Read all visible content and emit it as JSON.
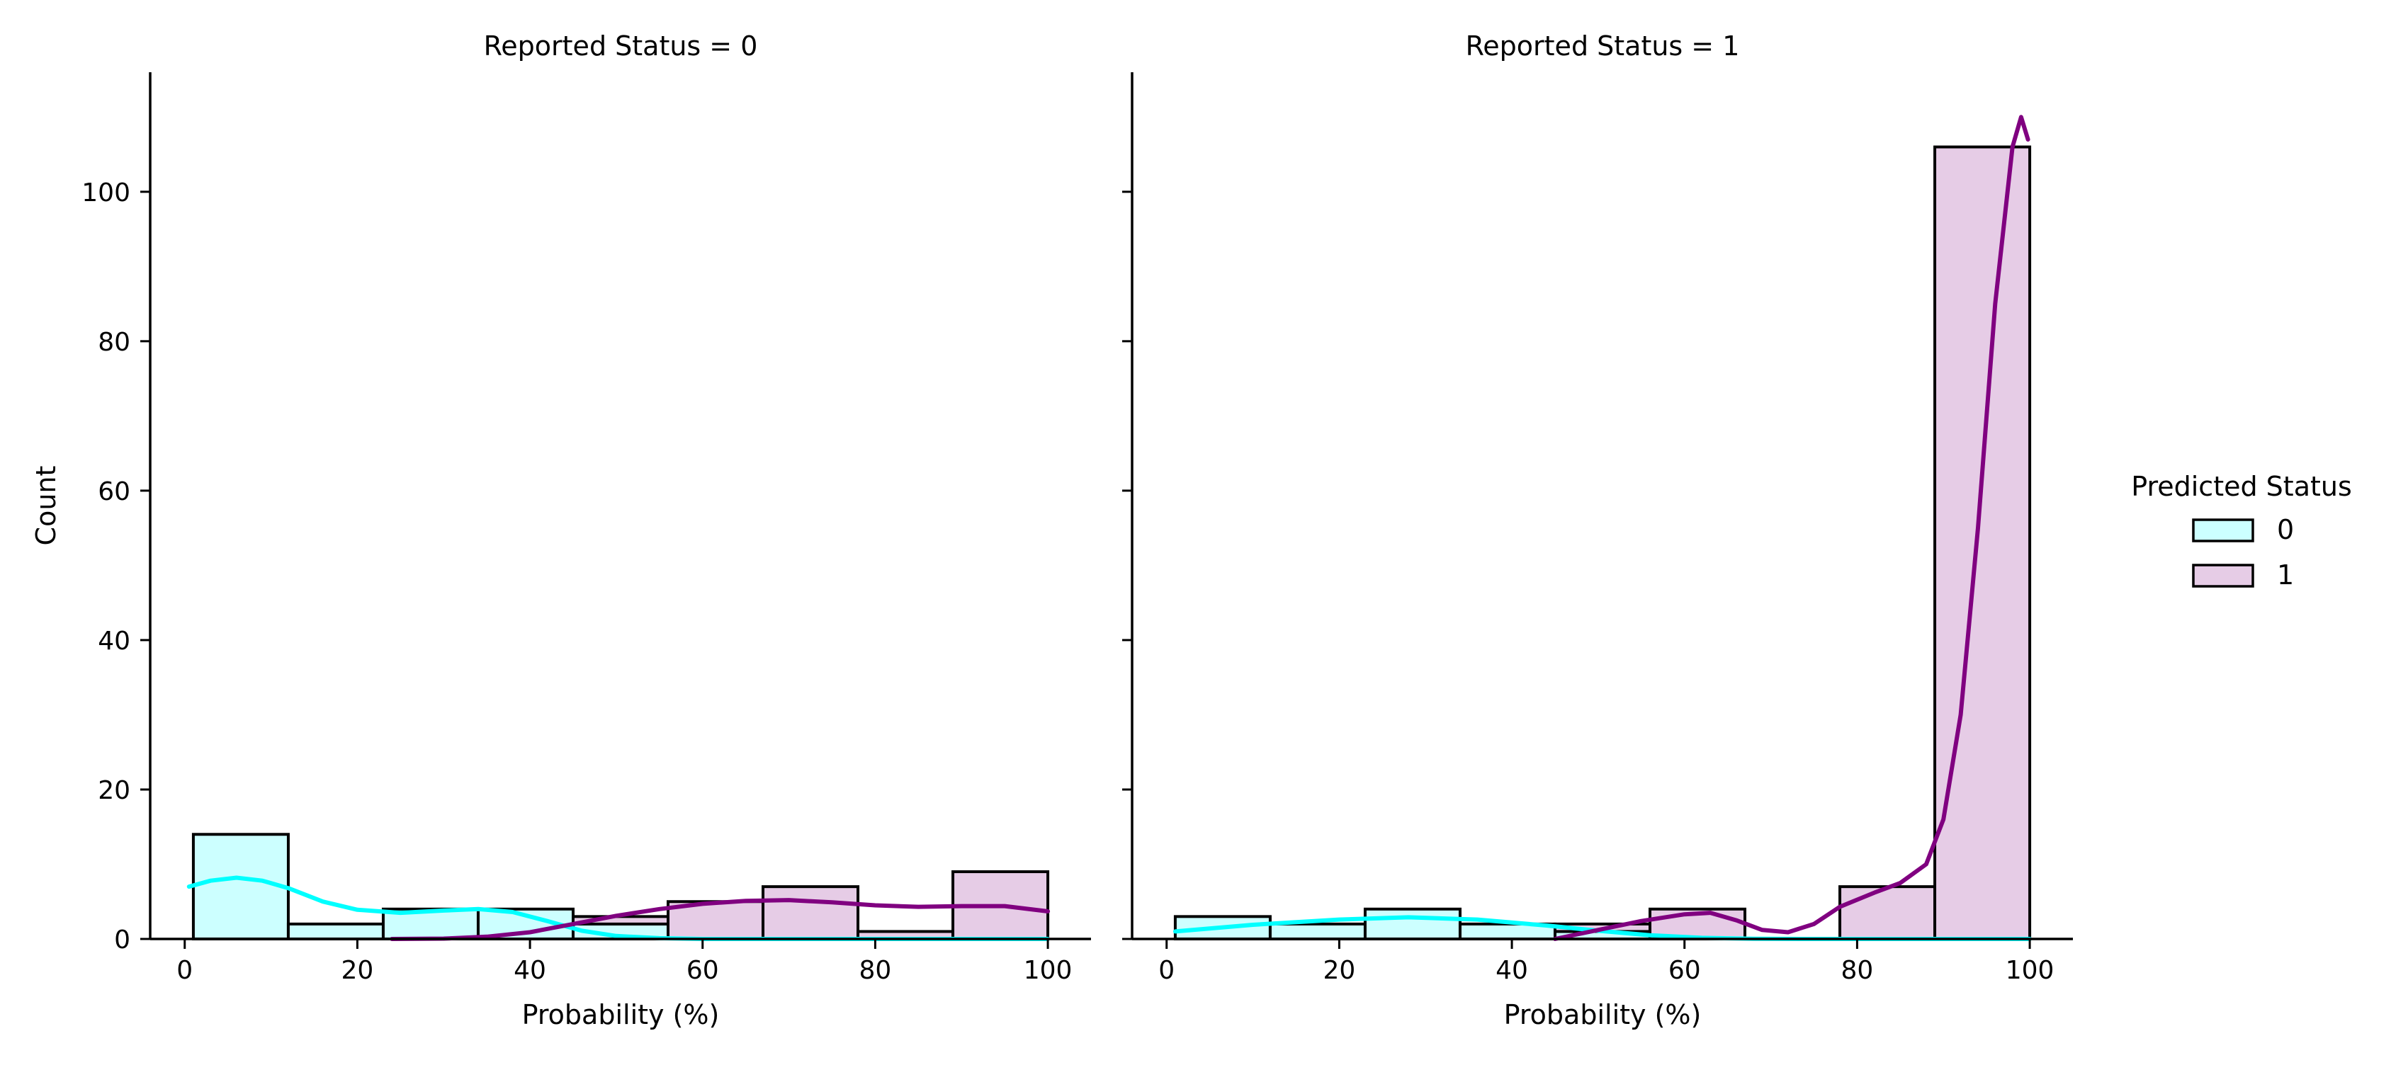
{
  "figure": {
    "ylabel": "Count",
    "legend": {
      "title": "Predicted Status",
      "placement": "right",
      "entries": [
        {
          "label": "0",
          "color": "#00FFFF",
          "fill": "#CCFFFF"
        },
        {
          "label": "1",
          "color": "#800080",
          "fill": "#E6CCE6"
        }
      ]
    }
  },
  "chart_data": [
    {
      "type": "bar",
      "subtype": "stacked-histogram-with-kde",
      "title": "Reported Status = 0",
      "xlabel": "Probability (%)",
      "ylabel": "Count",
      "xlim": [
        -4,
        105
      ],
      "ylim": [
        0,
        116
      ],
      "xticks": [
        0,
        20,
        40,
        60,
        80,
        100
      ],
      "yticks": [
        0,
        20,
        40,
        60,
        80,
        100
      ],
      "bin_edges": [
        1,
        12,
        23,
        34,
        45,
        56,
        67,
        78,
        89,
        100
      ],
      "series": [
        {
          "name": "0",
          "color": "#00FFFF",
          "fill": "#CCFFFF",
          "values": [
            14,
            2,
            4,
            4,
            2,
            0,
            0,
            0,
            0
          ]
        },
        {
          "name": "1",
          "color": "#800080",
          "fill": "#E6CCE6",
          "values": [
            0,
            0,
            0,
            0,
            1,
            5,
            7,
            1,
            9
          ]
        }
      ],
      "kde": [
        {
          "name": "0",
          "color": "#00FFFF",
          "points": [
            [
              0.5,
              7
            ],
            [
              3,
              7.8
            ],
            [
              6,
              8.2
            ],
            [
              9,
              7.8
            ],
            [
              12,
              6.8
            ],
            [
              16,
              5
            ],
            [
              20,
              3.9
            ],
            [
              25,
              3.5
            ],
            [
              30,
              3.8
            ],
            [
              34,
              4
            ],
            [
              38,
              3.6
            ],
            [
              42,
              2.4
            ],
            [
              46,
              1.1
            ],
            [
              50,
              0.4
            ],
            [
              55,
              0.1
            ],
            [
              60,
              0
            ],
            [
              100,
              0
            ]
          ]
        },
        {
          "name": "1",
          "color": "#800080",
          "points": [
            [
              24,
              0
            ],
            [
              30,
              0.05
            ],
            [
              35,
              0.3
            ],
            [
              40,
              0.9
            ],
            [
              45,
              2
            ],
            [
              50,
              3.1
            ],
            [
              55,
              4
            ],
            [
              60,
              4.7
            ],
            [
              65,
              5.1
            ],
            [
              70,
              5.2
            ],
            [
              75,
              4.9
            ],
            [
              80,
              4.5
            ],
            [
              85,
              4.3
            ],
            [
              90,
              4.4
            ],
            [
              95,
              4.4
            ],
            [
              100,
              3.7
            ]
          ]
        }
      ]
    },
    {
      "type": "bar",
      "subtype": "stacked-histogram-with-kde",
      "title": "Reported Status = 1",
      "xlabel": "Probability (%)",
      "ylabel": "Count",
      "xlim": [
        -4,
        105
      ],
      "ylim": [
        0,
        116
      ],
      "xticks": [
        0,
        20,
        40,
        60,
        80,
        100
      ],
      "yticks": [
        0,
        20,
        40,
        60,
        80,
        100
      ],
      "bin_edges": [
        1,
        12,
        23,
        34,
        45,
        56,
        67,
        78,
        89,
        100
      ],
      "series": [
        {
          "name": "0",
          "color": "#00FFFF",
          "fill": "#CCFFFF",
          "values": [
            3,
            2,
            4,
            2,
            1,
            0,
            0,
            0,
            0
          ]
        },
        {
          "name": "1",
          "color": "#800080",
          "fill": "#E6CCE6",
          "values": [
            0,
            0,
            0,
            0,
            1,
            4,
            0,
            7,
            106
          ]
        }
      ],
      "kde": [
        {
          "name": "0",
          "color": "#00FFFF",
          "points": [
            [
              1,
              1
            ],
            [
              10,
              1.9
            ],
            [
              20,
              2.6
            ],
            [
              28,
              2.9
            ],
            [
              36,
              2.6
            ],
            [
              44,
              1.8
            ],
            [
              50,
              1.1
            ],
            [
              56,
              0.5
            ],
            [
              62,
              0.15
            ],
            [
              68,
              0.02
            ],
            [
              75,
              0
            ],
            [
              100,
              0
            ]
          ]
        },
        {
          "name": "1",
          "color": "#800080",
          "points": [
            [
              45,
              0
            ],
            [
              50,
              1.2
            ],
            [
              55,
              2.4
            ],
            [
              60,
              3.3
            ],
            [
              63,
              3.5
            ],
            [
              66,
              2.5
            ],
            [
              69,
              1.2
            ],
            [
              72,
              0.9
            ],
            [
              75,
              2
            ],
            [
              78,
              4.3
            ],
            [
              82,
              6.2
            ],
            [
              85,
              7.5
            ],
            [
              88,
              10
            ],
            [
              90,
              16
            ],
            [
              92,
              30
            ],
            [
              94,
              55
            ],
            [
              96,
              85
            ],
            [
              98,
              106
            ],
            [
              99,
              110
            ],
            [
              99.8,
              107
            ]
          ]
        }
      ]
    }
  ]
}
